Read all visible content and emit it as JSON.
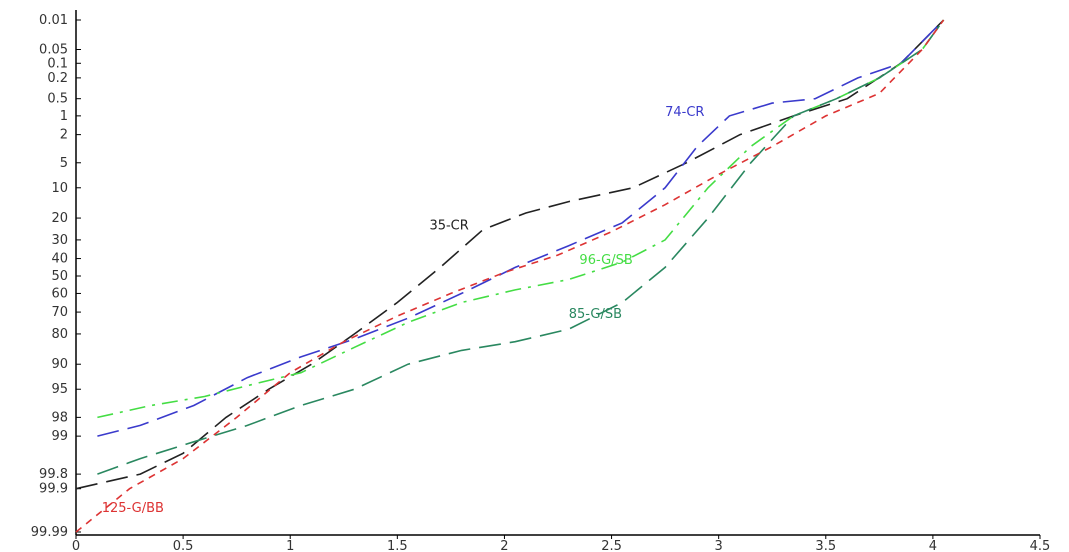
{
  "chart_data": {
    "type": "line",
    "title": "",
    "xlabel": "",
    "ylabel": "",
    "xlim": [
      0,
      4.5
    ],
    "y_scale": "probability",
    "y_reversed": true,
    "x_ticks": [
      "0",
      "0.5",
      "1",
      "1.5",
      "2",
      "2.5",
      "3",
      "3.5",
      "4",
      "4.5"
    ],
    "x_tick_values": [
      0,
      0.5,
      1,
      1.5,
      2,
      2.5,
      3,
      3.5,
      4,
      4.5
    ],
    "y_ticks": [
      "0.01",
      "0.05",
      "0.1",
      "0.2",
      "0.5",
      "1",
      "2",
      "5",
      "10",
      "20",
      "30",
      "40",
      "50",
      "60",
      "70",
      "80",
      "90",
      "95",
      "98",
      "99",
      "99.8",
      "99.9",
      "99.99"
    ],
    "y_tick_values": [
      0.01,
      0.05,
      0.1,
      0.2,
      0.5,
      1,
      2,
      5,
      10,
      20,
      30,
      40,
      50,
      60,
      70,
      80,
      90,
      95,
      98,
      99,
      99.8,
      99.9,
      99.99
    ],
    "grid": false,
    "legend": "none",
    "series": [
      {
        "name": "35-CR",
        "color": "#222222",
        "dash": "long-dash",
        "x": [
          0,
          0.3,
          0.5,
          0.7,
          0.9,
          1.1,
          1.3,
          1.5,
          1.7,
          1.9,
          2.1,
          2.3,
          2.6,
          2.85,
          3.1,
          3.35,
          3.6,
          3.85,
          4.05
        ],
        "y": [
          99.9,
          99.8,
          99.5,
          98,
          95,
          90,
          80,
          65,
          45,
          25,
          18,
          14,
          10,
          5,
          2,
          1,
          0.5,
          0.1,
          0.01
        ]
      },
      {
        "name": "74-CR",
        "color": "#3a3acc",
        "dash": "long-dash",
        "x": [
          0.1,
          0.3,
          0.55,
          0.8,
          1.05,
          1.3,
          1.55,
          1.8,
          2.05,
          2.3,
          2.55,
          2.75,
          2.9,
          3.05,
          3.25,
          3.45,
          3.65,
          3.85,
          4.05
        ],
        "y": [
          99,
          98.5,
          97,
          93,
          88,
          82,
          73,
          60,
          45,
          33,
          22,
          10,
          3,
          1,
          0.6,
          0.5,
          0.2,
          0.1,
          0.01
        ]
      },
      {
        "name": "96-G/SB",
        "color": "#44dd44",
        "dash": "dash-dot",
        "x": [
          0.1,
          0.35,
          0.6,
          0.85,
          1.05,
          1.3,
          1.55,
          1.8,
          2.05,
          2.3,
          2.55,
          2.75,
          2.95,
          3.15,
          3.35,
          3.55,
          3.75,
          3.95,
          4.05
        ],
        "y": [
          98,
          97,
          96,
          94,
          92,
          85,
          75,
          65,
          58,
          52,
          42,
          30,
          10,
          3,
          1,
          0.5,
          0.2,
          0.05,
          0.01
        ]
      },
      {
        "name": "85-G/SB",
        "color": "#2a8860",
        "dash": "long-dash",
        "x": [
          0.1,
          0.3,
          0.55,
          0.8,
          1.05,
          1.3,
          1.55,
          1.8,
          2.05,
          2.3,
          2.55,
          2.75,
          2.95,
          3.15,
          3.35,
          3.55,
          3.75,
          3.95,
          4.05
        ],
        "y": [
          99.8,
          99.6,
          99.2,
          98.5,
          97,
          95,
          90,
          86,
          83,
          78,
          65,
          45,
          20,
          5,
          1,
          0.5,
          0.2,
          0.05,
          0.01
        ]
      },
      {
        "name": "125-G/BB",
        "color": "#dd3333",
        "dash": "short-dash",
        "x": [
          0,
          0.25,
          0.5,
          0.75,
          1.0,
          1.25,
          1.5,
          1.75,
          2.0,
          2.25,
          2.5,
          2.75,
          3.0,
          3.25,
          3.5,
          3.75,
          3.95,
          4.05
        ],
        "y": [
          99.99,
          99.9,
          99.6,
          98,
          92,
          83,
          72,
          60,
          48,
          38,
          26,
          15,
          7,
          3,
          1,
          0.4,
          0.05,
          0.01
        ]
      }
    ],
    "annotations": [
      {
        "text": "35-CR",
        "series": "35-CR",
        "x": 1.65,
        "y": 25
      },
      {
        "text": "74-CR",
        "series": "74-CR",
        "x": 2.75,
        "y": 1
      },
      {
        "text": "96-G/SB",
        "series": "96-G/SB",
        "x": 2.35,
        "y": 43
      },
      {
        "text": "85-G/SB",
        "series": "85-G/SB",
        "x": 2.3,
        "y": 73
      },
      {
        "text": "125-G/BB",
        "series": "125-G/BB",
        "x": 0.12,
        "y": 99.97
      }
    ]
  }
}
